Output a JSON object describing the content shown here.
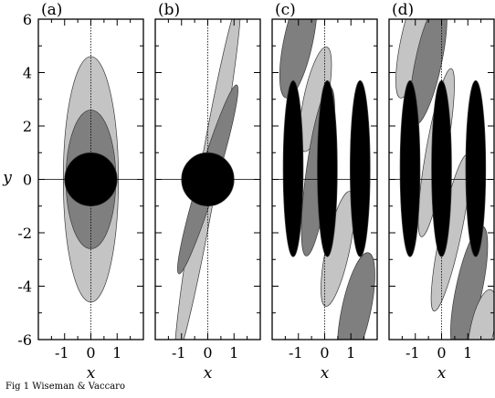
{
  "figure": {
    "caption": "Fig 1  Wiseman & Vaccaro",
    "y_label": "y",
    "x_label": "x",
    "colors": {
      "light": "#c4c4c4",
      "mid": "#7f7f7f",
      "dark": "#000000"
    },
    "x_ticks": [
      "-1",
      "0",
      "1"
    ],
    "y_ticks": [
      "6",
      "4",
      "2",
      "0",
      "-2",
      "-4",
      "-6"
    ],
    "x_range": [
      -2,
      2
    ],
    "y_range": [
      -6,
      6
    ],
    "panels": [
      {
        "label": "(a)",
        "ellipses": [
          {
            "tone": "light",
            "cx": 0,
            "cy": 0,
            "rx": 1.05,
            "ry": 4.6,
            "rot": 0
          },
          {
            "tone": "mid",
            "cx": 0,
            "cy": 0,
            "rx": 0.95,
            "ry": 2.6,
            "rot": 0
          },
          {
            "tone": "dark",
            "cx": 0,
            "cy": 0,
            "rx": 1.0,
            "ry": 1.0,
            "rot": 0
          }
        ]
      },
      {
        "label": "(b)",
        "ellipses": [
          {
            "tone": "light",
            "cx": 0,
            "cy": 0,
            "rx": 0.35,
            "ry": 6.8,
            "rot": 10
          },
          {
            "tone": "mid",
            "cx": 0,
            "cy": 0,
            "rx": 0.35,
            "ry": 3.7,
            "rot": 17
          },
          {
            "tone": "dark",
            "cx": 0,
            "cy": 0,
            "rx": 1.0,
            "ry": 1.0,
            "rot": 0
          }
        ]
      },
      {
        "label": "(c)",
        "ellipses": [
          {
            "tone": "mid",
            "cx": -1.0,
            "cy": 5.2,
            "rx": 0.55,
            "ry": 2.2,
            "rot": 12
          },
          {
            "tone": "light",
            "cx": -0.35,
            "cy": 3.0,
            "rx": 0.45,
            "ry": 2.0,
            "rot": 12
          },
          {
            "tone": "mid",
            "cx": -0.25,
            "cy": 0.3,
            "rx": 0.45,
            "ry": 3.2,
            "rot": 8
          },
          {
            "tone": "light",
            "cx": 0.5,
            "cy": -2.6,
            "rx": 0.45,
            "ry": 2.2,
            "rot": 12
          },
          {
            "tone": "mid",
            "cx": 1.2,
            "cy": -4.9,
            "rx": 0.55,
            "ry": 2.2,
            "rot": 12
          },
          {
            "tone": "dark",
            "cx": -1.2,
            "cy": 0.4,
            "rx": 0.38,
            "ry": 3.3,
            "rot": 0
          },
          {
            "tone": "dark",
            "cx": 0.1,
            "cy": 0.4,
            "rx": 0.38,
            "ry": 3.3,
            "rot": 0
          },
          {
            "tone": "dark",
            "cx": 1.35,
            "cy": 0.4,
            "rx": 0.38,
            "ry": 3.3,
            "rot": 0
          }
        ]
      },
      {
        "label": "(d)",
        "ellipses": [
          {
            "tone": "light",
            "cx": -1.1,
            "cy": 5.2,
            "rx": 0.45,
            "ry": 2.2,
            "rot": 12
          },
          {
            "tone": "mid",
            "cx": -0.5,
            "cy": 4.4,
            "rx": 0.5,
            "ry": 2.4,
            "rot": 12
          },
          {
            "tone": "light",
            "cx": -0.2,
            "cy": 1.0,
            "rx": 0.4,
            "ry": 3.2,
            "rot": 10
          },
          {
            "tone": "light",
            "cx": 0.35,
            "cy": -2.0,
            "rx": 0.4,
            "ry": 3.0,
            "rot": 12
          },
          {
            "tone": "mid",
            "cx": 1.05,
            "cy": -4.1,
            "rx": 0.5,
            "ry": 2.4,
            "rot": 12
          },
          {
            "tone": "light",
            "cx": 1.55,
            "cy": -5.6,
            "rx": 0.45,
            "ry": 1.5,
            "rot": 12
          },
          {
            "tone": "dark",
            "cx": -1.2,
            "cy": 0.4,
            "rx": 0.38,
            "ry": 3.3,
            "rot": 0
          },
          {
            "tone": "dark",
            "cx": 0.0,
            "cy": 0.4,
            "rx": 0.38,
            "ry": 3.3,
            "rot": 0
          },
          {
            "tone": "dark",
            "cx": 1.3,
            "cy": 0.4,
            "rx": 0.38,
            "ry": 3.3,
            "rot": 0
          }
        ]
      }
    ]
  }
}
